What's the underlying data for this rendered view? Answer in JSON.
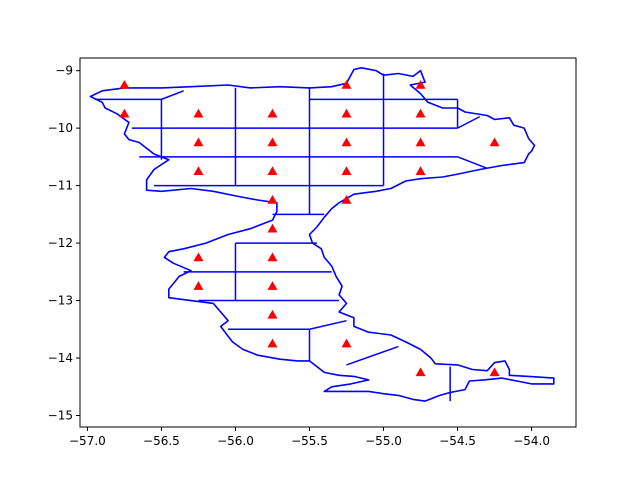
{
  "chart_data": {
    "type": "scatter",
    "title": "",
    "xlabel": "",
    "ylabel": "",
    "xlim": [
      -57.05,
      -53.7
    ],
    "ylim": [
      -15.2,
      -8.78
    ],
    "xticks": [
      -57.0,
      -56.5,
      -56.0,
      -55.5,
      -55.0,
      -54.5,
      -54.0
    ],
    "xtick_labels": [
      "−57.0",
      "−56.5",
      "−56.0",
      "−55.5",
      "−55.0",
      "−54.5",
      "−54.0"
    ],
    "yticks": [
      -9,
      -10,
      -11,
      -12,
      -13,
      -14,
      -15
    ],
    "ytick_labels": [
      "−9",
      "−10",
      "−11",
      "−12",
      "−13",
      "−14",
      "−15"
    ],
    "grid": false,
    "colors": {
      "boundary": "#0000ff",
      "marker": "#ff0000",
      "axes": "#000000"
    },
    "boundary": [
      [
        -56.9,
        -9.35
      ],
      [
        -56.75,
        -9.3
      ],
      [
        -56.5,
        -9.3
      ],
      [
        -56.3,
        -9.28
      ],
      [
        -56.05,
        -9.25
      ],
      [
        -55.9,
        -9.3
      ],
      [
        -55.7,
        -9.28
      ],
      [
        -55.5,
        -9.3
      ],
      [
        -55.35,
        -9.28
      ],
      [
        -55.25,
        -9.22
      ],
      [
        -55.2,
        -8.98
      ],
      [
        -55.15,
        -8.95
      ],
      [
        -55.05,
        -9.0
      ],
      [
        -55.0,
        -9.08
      ],
      [
        -54.9,
        -9.05
      ],
      [
        -54.8,
        -9.1
      ],
      [
        -54.75,
        -9.0
      ],
      [
        -54.72,
        -9.2
      ],
      [
        -54.82,
        -9.25
      ],
      [
        -54.75,
        -9.4
      ],
      [
        -54.7,
        -9.55
      ],
      [
        -54.6,
        -9.65
      ],
      [
        -54.5,
        -9.65
      ],
      [
        -54.45,
        -9.72
      ],
      [
        -54.3,
        -9.78
      ],
      [
        -54.25,
        -9.85
      ],
      [
        -54.15,
        -9.82
      ],
      [
        -54.12,
        -9.95
      ],
      [
        -54.05,
        -10.0
      ],
      [
        -54.02,
        -10.18
      ],
      [
        -53.98,
        -10.3
      ],
      [
        -54.0,
        -10.4
      ],
      [
        -54.02,
        -10.45
      ],
      [
        -54.05,
        -10.6
      ],
      [
        -54.2,
        -10.65
      ],
      [
        -54.35,
        -10.72
      ],
      [
        -54.5,
        -10.8
      ],
      [
        -54.6,
        -10.85
      ],
      [
        -54.75,
        -10.88
      ],
      [
        -54.85,
        -10.92
      ],
      [
        -54.95,
        -11.05
      ],
      [
        -55.05,
        -11.1
      ],
      [
        -55.2,
        -11.15
      ],
      [
        -55.3,
        -11.3
      ],
      [
        -55.35,
        -11.4
      ],
      [
        -55.4,
        -11.55
      ],
      [
        -55.45,
        -11.72
      ],
      [
        -55.5,
        -11.85
      ],
      [
        -55.48,
        -12.0
      ],
      [
        -55.42,
        -12.1
      ],
      [
        -55.4,
        -12.25
      ],
      [
        -55.35,
        -12.4
      ],
      [
        -55.32,
        -12.58
      ],
      [
        -55.28,
        -12.75
      ],
      [
        -55.3,
        -12.9
      ],
      [
        -55.25,
        -13.05
      ],
      [
        -55.3,
        -13.2
      ],
      [
        -55.2,
        -13.3
      ],
      [
        -55.2,
        -13.45
      ],
      [
        -55.1,
        -13.55
      ],
      [
        -54.95,
        -13.6
      ],
      [
        -54.85,
        -13.72
      ],
      [
        -54.75,
        -13.85
      ],
      [
        -54.68,
        -14.0
      ],
      [
        -54.65,
        -14.1
      ],
      [
        -54.5,
        -14.12
      ],
      [
        -54.4,
        -14.2
      ],
      [
        -54.3,
        -14.22
      ],
      [
        -54.25,
        -14.08
      ],
      [
        -54.18,
        -14.05
      ],
      [
        -54.15,
        -14.2
      ],
      [
        -54.15,
        -14.3
      ],
      [
        -54.02,
        -14.32
      ],
      [
        -53.85,
        -14.35
      ],
      [
        -53.85,
        -14.45
      ],
      [
        -54.0,
        -14.45
      ],
      [
        -54.1,
        -14.4
      ],
      [
        -54.2,
        -14.35
      ],
      [
        -54.32,
        -14.38
      ],
      [
        -54.42,
        -14.4
      ],
      [
        -54.45,
        -14.55
      ],
      [
        -54.55,
        -14.6
      ],
      [
        -54.62,
        -14.65
      ],
      [
        -54.72,
        -14.75
      ],
      [
        -54.8,
        -14.72
      ],
      [
        -54.9,
        -14.65
      ],
      [
        -55.0,
        -14.62
      ],
      [
        -55.1,
        -14.58
      ],
      [
        -55.3,
        -14.58
      ],
      [
        -55.4,
        -14.58
      ],
      [
        -55.35,
        -14.5
      ],
      [
        -55.22,
        -14.45
      ],
      [
        -55.1,
        -14.38
      ],
      [
        -55.2,
        -14.32
      ],
      [
        -55.3,
        -14.3
      ],
      [
        -55.4,
        -14.25
      ],
      [
        -55.5,
        -14.05
      ],
      [
        -55.58,
        -14.05
      ],
      [
        -55.7,
        -14.02
      ],
      [
        -55.85,
        -13.95
      ],
      [
        -55.95,
        -13.85
      ],
      [
        -56.02,
        -13.72
      ],
      [
        -56.05,
        -13.62
      ],
      [
        -56.1,
        -13.45
      ],
      [
        -56.05,
        -13.35
      ],
      [
        -56.1,
        -13.2
      ],
      [
        -56.15,
        -13.05
      ],
      [
        -56.3,
        -13.0
      ],
      [
        -56.45,
        -12.95
      ],
      [
        -56.45,
        -12.8
      ],
      [
        -56.38,
        -12.58
      ],
      [
        -56.3,
        -12.48
      ],
      [
        -56.42,
        -12.35
      ],
      [
        -56.48,
        -12.25
      ],
      [
        -56.45,
        -12.15
      ],
      [
        -56.35,
        -12.1
      ],
      [
        -56.2,
        -12.0
      ],
      [
        -56.05,
        -11.85
      ],
      [
        -55.9,
        -11.75
      ],
      [
        -55.75,
        -11.6
      ],
      [
        -55.72,
        -11.45
      ],
      [
        -55.72,
        -11.3
      ],
      [
        -55.85,
        -11.25
      ],
      [
        -56.0,
        -11.18
      ],
      [
        -56.15,
        -11.1
      ],
      [
        -56.3,
        -11.05
      ],
      [
        -56.5,
        -11.1
      ],
      [
        -56.6,
        -11.08
      ],
      [
        -56.6,
        -10.9
      ],
      [
        -56.55,
        -10.72
      ],
      [
        -56.45,
        -10.55
      ],
      [
        -56.55,
        -10.45
      ],
      [
        -56.6,
        -10.35
      ],
      [
        -56.65,
        -10.25
      ],
      [
        -56.72,
        -10.2
      ],
      [
        -56.75,
        -10.1
      ],
      [
        -56.72,
        -9.9
      ],
      [
        -56.8,
        -9.75
      ],
      [
        -56.88,
        -9.65
      ],
      [
        -56.9,
        -9.55
      ],
      [
        -56.98,
        -9.45
      ],
      [
        -56.9,
        -9.35
      ]
    ],
    "grid_lines": [
      [
        [
          -56.95,
          -9.5
        ],
        [
          -56.5,
          -9.5
        ]
      ],
      [
        [
          -56.5,
          -9.5
        ],
        [
          -56.5,
          -10.0
        ]
      ],
      [
        [
          -56.5,
          -9.5
        ],
        [
          -56.35,
          -9.35
        ]
      ],
      [
        [
          -56.7,
          -10.0
        ],
        [
          -54.5,
          -10.0
        ]
      ],
      [
        [
          -56.65,
          -10.5
        ],
        [
          -54.5,
          -10.5
        ]
      ],
      [
        [
          -54.5,
          -10.0
        ],
        [
          -54.35,
          -9.8
        ]
      ],
      [
        [
          -54.5,
          -10.5
        ],
        [
          -54.3,
          -10.7
        ]
      ],
      [
        [
          -56.5,
          -10.0
        ],
        [
          -56.5,
          -10.55
        ]
      ],
      [
        [
          -56.0,
          -9.3
        ],
        [
          -56.0,
          -11.0
        ]
      ],
      [
        [
          -55.5,
          -9.3
        ],
        [
          -55.5,
          -11.5
        ]
      ],
      [
        [
          -55.0,
          -9.05
        ],
        [
          -55.0,
          -11.0
        ]
      ],
      [
        [
          -56.55,
          -11.0
        ],
        [
          -55.0,
          -11.0
        ]
      ],
      [
        [
          -54.5,
          -9.5
        ],
        [
          -55.5,
          -9.5
        ]
      ],
      [
        [
          -54.5,
          -9.5
        ],
        [
          -54.5,
          -10.0
        ]
      ],
      [
        [
          -55.75,
          -11.5
        ],
        [
          -55.4,
          -11.5
        ]
      ],
      [
        [
          -56.0,
          -12.0
        ],
        [
          -55.45,
          -12.0
        ]
      ],
      [
        [
          -56.35,
          -12.5
        ],
        [
          -55.35,
          -12.5
        ]
      ],
      [
        [
          -56.0,
          -12.0
        ],
        [
          -56.0,
          -13.0
        ]
      ],
      [
        [
          -56.25,
          -13.0
        ],
        [
          -55.3,
          -13.0
        ]
      ],
      [
        [
          -56.05,
          -13.5
        ],
        [
          -55.5,
          -13.5
        ]
      ],
      [
        [
          -55.5,
          -13.5
        ],
        [
          -55.5,
          -14.05
        ]
      ],
      [
        [
          -55.5,
          -13.5
        ],
        [
          -55.25,
          -13.35
        ]
      ],
      [
        [
          -55.25,
          -14.12
        ],
        [
          -54.9,
          -13.8
        ]
      ],
      [
        [
          -54.55,
          -14.15
        ],
        [
          -54.55,
          -14.75
        ]
      ]
    ],
    "points": [
      [
        -56.75,
        -9.25
      ],
      [
        -56.75,
        -9.75
      ],
      [
        -56.25,
        -9.75
      ],
      [
        -56.25,
        -10.25
      ],
      [
        -56.25,
        -10.75
      ],
      [
        -55.75,
        -9.75
      ],
      [
        -55.75,
        -10.25
      ],
      [
        -55.75,
        -10.75
      ],
      [
        -55.75,
        -11.25
      ],
      [
        -55.75,
        -11.75
      ],
      [
        -55.25,
        -9.25
      ],
      [
        -55.25,
        -9.75
      ],
      [
        -55.25,
        -10.25
      ],
      [
        -55.25,
        -10.75
      ],
      [
        -55.25,
        -11.25
      ],
      [
        -54.75,
        -9.25
      ],
      [
        -54.75,
        -9.75
      ],
      [
        -54.75,
        -10.25
      ],
      [
        -54.75,
        -10.75
      ],
      [
        -54.25,
        -10.25
      ],
      [
        -56.25,
        -12.25
      ],
      [
        -56.25,
        -12.75
      ],
      [
        -55.75,
        -12.25
      ],
      [
        -55.75,
        -12.75
      ],
      [
        -55.75,
        -13.25
      ],
      [
        -55.75,
        -13.75
      ],
      [
        -55.25,
        -13.75
      ],
      [
        -54.75,
        -14.25
      ],
      [
        -54.25,
        -14.25
      ]
    ]
  }
}
